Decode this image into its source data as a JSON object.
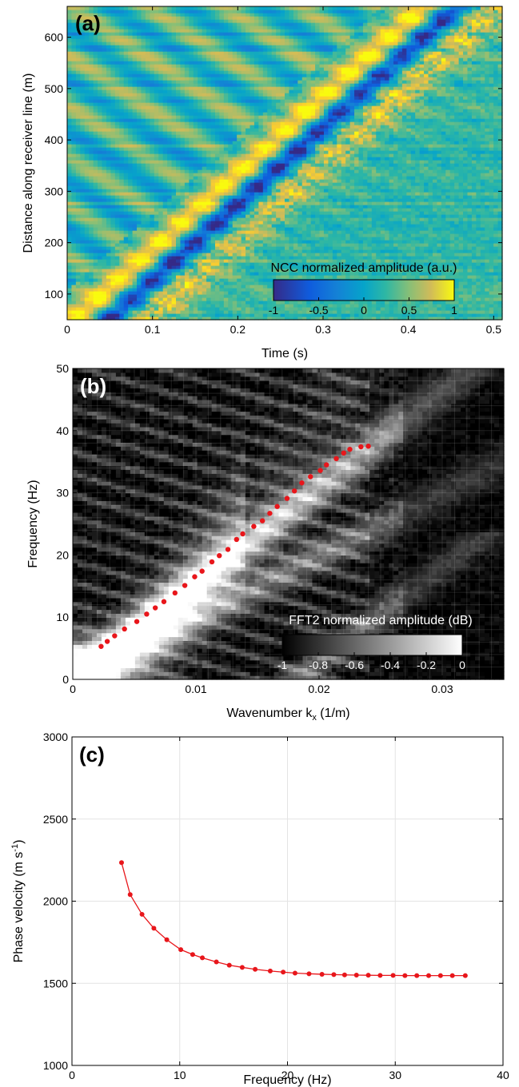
{
  "colors": {
    "accent_red": "#e8161b",
    "frame": "#000000",
    "grid_light": "#e4e4e4"
  },
  "chart_data": [
    {
      "type": "heatmap",
      "panel_label": "(a)",
      "xlabel": "Time (s)",
      "ylabel": "Distance along receiver line (m)",
      "xlim": [
        0,
        0.51
      ],
      "ylim": [
        50,
        660
      ],
      "x_ticks": [
        0,
        0.1,
        0.2,
        0.3,
        0.4,
        0.5
      ],
      "x_tick_labels": [
        "0",
        "0.1",
        "0.2",
        "0.3",
        "0.4",
        "0.5"
      ],
      "y_ticks": [
        100,
        200,
        300,
        400,
        500,
        600
      ],
      "y_tick_labels": [
        "100",
        "200",
        "300",
        "400",
        "500",
        "600"
      ],
      "colorscale": "parula",
      "move_out": {
        "time_at_50m": 0.02,
        "time_at_660m": 0.43,
        "description": "positive peak followed by negative trough propagating across receivers"
      },
      "colorbar": {
        "label": "NCC normalized amplitude (a.u.)",
        "range": [
          -1,
          1
        ],
        "ticks": [
          -1,
          -0.5,
          0,
          0.5,
          1
        ],
        "tick_labels": [
          "-1",
          "-0.5",
          "0",
          "0.5",
          "1"
        ],
        "placement": "bottom-right"
      }
    },
    {
      "type": "heatmap",
      "panel_label": "(b)",
      "xlabel": "Wavenumber k",
      "xlabel_sub": "x",
      "xlabel_unit": " (1/m)",
      "ylabel": "Frequency (Hz)",
      "xlim": [
        0,
        0.035
      ],
      "ylim": [
        0,
        50
      ],
      "x_ticks": [
        0,
        0.01,
        0.02,
        0.03
      ],
      "x_tick_labels": [
        "0",
        "0.01",
        "0.02",
        "0.03"
      ],
      "y_ticks": [
        0,
        10,
        20,
        30,
        40,
        50
      ],
      "y_tick_labels": [
        "0",
        "10",
        "20",
        "30",
        "40",
        "50"
      ],
      "colorscale": "gray",
      "grid": true,
      "picked_points": {
        "color": "#e8161b",
        "k": [
          0.0023,
          0.0028,
          0.0034,
          0.0042,
          0.0052,
          0.006,
          0.0067,
          0.0074,
          0.0083,
          0.0091,
          0.0099,
          0.0105,
          0.0113,
          0.0119,
          0.0126,
          0.0133,
          0.0138,
          0.0147,
          0.0154,
          0.016,
          0.0166,
          0.0174,
          0.018,
          0.0186,
          0.0193,
          0.0201,
          0.0206,
          0.0214,
          0.022,
          0.0225,
          0.0234,
          0.024
        ],
        "f": [
          5.3,
          6.1,
          7.0,
          8.1,
          9.3,
          10.5,
          11.5,
          12.5,
          13.9,
          15.1,
          16.5,
          17.4,
          18.9,
          19.9,
          20.9,
          22.5,
          23.4,
          24.6,
          25.5,
          26.7,
          27.8,
          29.1,
          30.3,
          31.6,
          32.6,
          33.6,
          34.5,
          35.5,
          36.4,
          37.0,
          37.4,
          37.5
        ]
      },
      "colorbar": {
        "label": "FFT2 normalized amplitude (dB)",
        "range": [
          -1,
          0
        ],
        "ticks": [
          -1,
          -0.8,
          -0.6,
          -0.4,
          -0.2,
          0
        ],
        "tick_labels": [
          "-1",
          "-0.8",
          "-0.6",
          "-0.4",
          "-0.2",
          "0"
        ],
        "placement": "bottom-right"
      }
    },
    {
      "type": "line",
      "panel_label": "(c)",
      "xlabel": "Frequency (Hz)",
      "ylabel": "Phase velocity (m s",
      "ylabel_sup": "-1",
      "ylabel_close": ")",
      "xlim": [
        0,
        40
      ],
      "ylim": [
        1000,
        3000
      ],
      "x_ticks": [
        0,
        10,
        20,
        30,
        40
      ],
      "x_tick_labels": [
        "0",
        "10",
        "20",
        "30",
        "40"
      ],
      "y_ticks": [
        1000,
        1500,
        2000,
        2500,
        3000
      ],
      "y_tick_labels": [
        "1000",
        "1500",
        "2000",
        "2500",
        "3000"
      ],
      "grid": true,
      "series": [
        {
          "color": "#e8161b",
          "x": [
            4.6,
            5.4,
            6.5,
            7.6,
            8.8,
            10.1,
            11.2,
            12.1,
            13.4,
            14.6,
            15.8,
            17.0,
            18.4,
            19.6,
            20.7,
            22.0,
            23.2,
            24.3,
            25.3,
            26.4,
            27.5,
            28.6,
            29.8,
            30.9,
            32.0,
            33.1,
            34.2,
            35.3,
            36.5
          ],
          "y": [
            2235,
            2040,
            1920,
            1835,
            1765,
            1705,
            1675,
            1655,
            1630,
            1610,
            1597,
            1585,
            1575,
            1568,
            1562,
            1558,
            1555,
            1553,
            1551,
            1550,
            1549,
            1548,
            1548,
            1547,
            1547,
            1547,
            1547,
            1547,
            1547
          ]
        }
      ]
    }
  ]
}
